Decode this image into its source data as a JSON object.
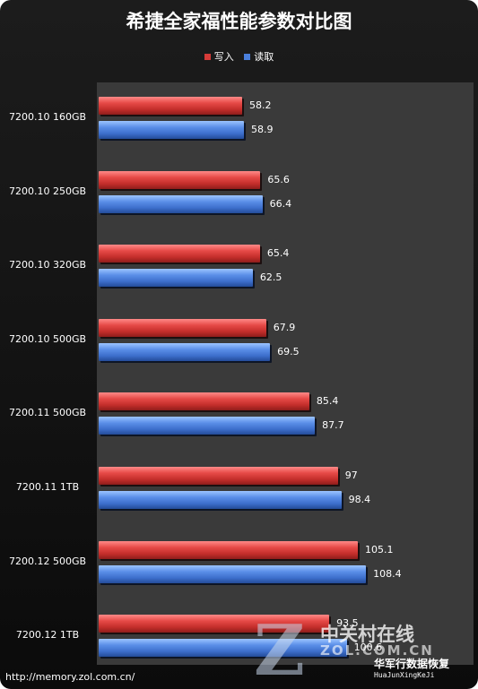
{
  "chart_data": {
    "type": "bar",
    "orientation": "horizontal",
    "title": "希捷全家福性能参数对比图",
    "categories": [
      "7200.10 160GB",
      "7200.10 250GB",
      "7200.10 320GB",
      "7200.10 500GB",
      "7200.11 500GB",
      "7200.11 1TB",
      "7200.12 500GB",
      "7200.12 1TB"
    ],
    "series": [
      {
        "name": "写入",
        "color": "#d63b38",
        "values": [
          58.2,
          65.6,
          65.4,
          67.9,
          85.4,
          97,
          105.1,
          93.5
        ]
      },
      {
        "name": "读取",
        "color": "#4a7fdc",
        "values": [
          58.9,
          66.4,
          62.5,
          69.5,
          87.7,
          98.4,
          108.4,
          100.6
        ]
      }
    ],
    "value_labels": {
      "写入": [
        "58.2",
        "65.6",
        "65.4",
        "67.9",
        "85.4",
        "97",
        "105.1",
        "93.5"
      ],
      "读取": [
        "58.9",
        "66.4",
        "62.5",
        "69.5",
        "87.7",
        "98.4",
        "108.4",
        "100.6"
      ]
    },
    "xlim": [
      0,
      160
    ],
    "legend_position": "top-center",
    "grid": false,
    "background": "#3a3a3a"
  },
  "footer": {
    "source_url": "http://memory.zol.com.cn/"
  },
  "watermark": {
    "logo_letter": "Z",
    "site_name": "中关村在线",
    "brand": "ZOL.COM.CN",
    "studio": "华军行数据恢复",
    "studio_pinyin": "HuaJunXingKeJi"
  }
}
